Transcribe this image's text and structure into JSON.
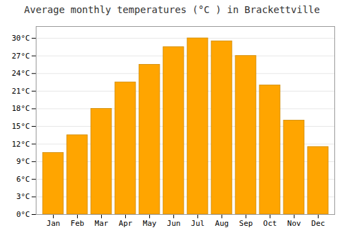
{
  "chart_data": {
    "type": "bar",
    "title": "Average monthly temperatures (°C ) in Brackettville",
    "categories": [
      "Jan",
      "Feb",
      "Mar",
      "Apr",
      "May",
      "Jun",
      "Jul",
      "Aug",
      "Sep",
      "Oct",
      "Nov",
      "Dec"
    ],
    "values": [
      10.5,
      13.5,
      18.0,
      22.5,
      25.5,
      28.5,
      30.0,
      29.5,
      27.0,
      22.0,
      16.0,
      11.5
    ],
    "color": "#FFA500",
    "ylim": [
      0,
      32
    ],
    "yticks": [
      {
        "value": 0,
        "label": "0°C"
      },
      {
        "value": 3,
        "label": "3°C"
      },
      {
        "value": 6,
        "label": "6°C"
      },
      {
        "value": 9,
        "label": "9°C"
      },
      {
        "value": 12,
        "label": "12°C"
      },
      {
        "value": 15,
        "label": "15°C"
      },
      {
        "value": 18,
        "label": "18°C"
      },
      {
        "value": 21,
        "label": "21°C"
      },
      {
        "value": 24,
        "label": "24°C"
      },
      {
        "value": 27,
        "label": "27°C"
      },
      {
        "value": 30,
        "label": "30°C"
      }
    ],
    "grid": true
  }
}
